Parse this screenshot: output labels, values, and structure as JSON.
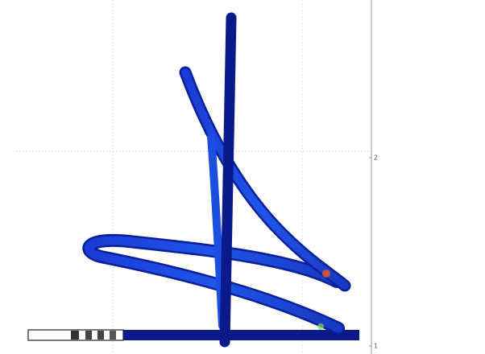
{
  "axis": {
    "tick_labels": [
      "2",
      "1"
    ]
  }
}
